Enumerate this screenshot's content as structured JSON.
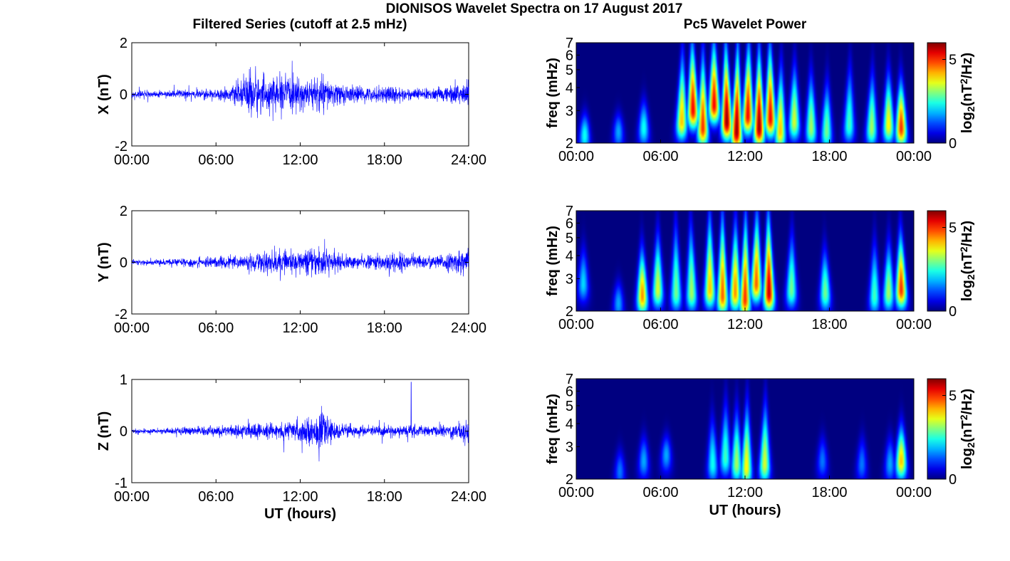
{
  "figure": {
    "title": "DIONISOS Wavelet Spectra on 17 August 2017",
    "left_title": "Filtered Series (cutoff at 2.5 mHz)",
    "right_title": "Pc5 Wavelet Power",
    "colorbar_label": "log2(nT2/Hz)"
  },
  "colors": {
    "series": "#0000ff",
    "axis": "#000000",
    "bg": "#ffffff"
  },
  "chart_data": [
    {
      "type": "line",
      "ylabel": "X (nT)",
      "xlabel": "",
      "xlim": [
        0,
        24
      ],
      "ylim": [
        -2,
        2
      ],
      "xticks": [
        "00:00",
        "06:00",
        "12:00",
        "18:00",
        "24:00"
      ],
      "yticks": [
        "-2",
        "0",
        "2"
      ],
      "amplitude_envelope": {
        "hours": [
          0,
          2,
          4,
          6,
          7,
          8,
          8.7,
          9,
          10,
          11,
          12,
          13,
          13.5,
          14,
          15,
          16,
          17,
          18,
          18.5,
          19,
          20,
          21,
          22,
          23,
          24
        ],
        "nT": [
          0.15,
          0.15,
          0.2,
          0.22,
          0.3,
          0.6,
          1.4,
          0.8,
          0.7,
          0.8,
          0.65,
          0.7,
          0.9,
          0.6,
          0.45,
          0.35,
          0.3,
          0.35,
          0.5,
          0.3,
          0.25,
          0.25,
          0.3,
          0.45,
          0.6
        ]
      },
      "annotations": []
    },
    {
      "type": "line",
      "ylabel": "Y (nT)",
      "xlabel": "",
      "xlim": [
        0,
        24
      ],
      "ylim": [
        -2,
        2
      ],
      "xticks": [
        "00:00",
        "06:00",
        "12:00",
        "18:00",
        "24:00"
      ],
      "yticks": [
        "-2",
        "0",
        "2"
      ],
      "amplitude_envelope": {
        "hours": [
          0,
          2,
          4,
          6,
          8,
          10,
          11,
          12,
          13,
          13.5,
          14,
          15,
          16,
          17,
          18,
          18.5,
          20,
          22,
          23,
          24
        ],
        "nT": [
          0.12,
          0.12,
          0.18,
          0.25,
          0.3,
          0.55,
          0.45,
          0.5,
          0.55,
          0.9,
          0.5,
          0.35,
          0.25,
          0.3,
          0.4,
          0.5,
          0.3,
          0.3,
          0.45,
          0.6
        ]
      },
      "annotations": []
    },
    {
      "type": "line",
      "ylabel": "Z (nT)",
      "xlabel": "UT (hours)",
      "xlim": [
        0,
        24
      ],
      "ylim": [
        -1,
        1
      ],
      "xticks": [
        "00:00",
        "06:00",
        "12:00",
        "18:00",
        "24:00"
      ],
      "yticks": [
        "-1",
        "0",
        "1"
      ],
      "amplitude_envelope": {
        "hours": [
          0,
          2,
          4,
          6,
          8,
          10,
          11,
          12,
          13,
          13.5,
          14,
          15,
          16,
          18,
          19,
          19.5,
          20,
          21,
          22,
          23,
          24
        ],
        "nT": [
          0.05,
          0.06,
          0.1,
          0.12,
          0.14,
          0.18,
          0.2,
          0.25,
          0.3,
          0.45,
          0.25,
          0.15,
          0.12,
          0.12,
          0.12,
          0.12,
          0.15,
          0.1,
          0.12,
          0.18,
          0.3
        ]
      },
      "spike": {
        "hour": 19.9,
        "nT": 0.95
      },
      "annotations": []
    },
    {
      "type": "heatmap",
      "xlabel": "",
      "ylabel": "freq (mHz)",
      "xlim": [
        0,
        24
      ],
      "ylim": [
        2,
        7
      ],
      "yscale": "log",
      "xticks": [
        "00:00",
        "06:00",
        "12:00",
        "18:00",
        "00:00"
      ],
      "yticks": [
        "2",
        "3",
        "4",
        "5",
        "6",
        "7"
      ],
      "colorbar": {
        "min": 0,
        "max": 6,
        "ticks": [
          "0",
          "5"
        ],
        "colormap": "jet"
      },
      "bursts": [
        [
          0.6,
          2.2,
          2.5,
          0.4
        ],
        [
          3,
          2.3,
          2.5,
          0.3
        ],
        [
          4.8,
          2.4,
          3,
          0.4
        ],
        [
          7.5,
          2.6,
          6,
          0.7
        ],
        [
          8.3,
          3,
          7,
          0.9
        ],
        [
          9,
          2.4,
          6,
          0.85
        ],
        [
          9.8,
          3.2,
          7,
          0.9
        ],
        [
          10.7,
          2.6,
          7,
          1
        ],
        [
          11.4,
          2.3,
          7,
          1
        ],
        [
          12.2,
          2.8,
          7,
          0.9
        ],
        [
          13,
          2.4,
          6.5,
          1
        ],
        [
          13.8,
          2.7,
          7,
          0.9
        ],
        [
          14.5,
          2.3,
          5,
          0.7
        ],
        [
          15.5,
          2.6,
          5,
          0.6
        ],
        [
          16.7,
          2.4,
          4.5,
          0.55
        ],
        [
          17.8,
          2.3,
          4,
          0.5
        ],
        [
          19.4,
          2.5,
          5,
          0.45
        ],
        [
          21,
          2.4,
          4.5,
          0.55
        ],
        [
          22.2,
          2.5,
          4.5,
          0.65
        ],
        [
          23.1,
          2.4,
          4,
          0.85
        ]
      ]
    },
    {
      "type": "heatmap",
      "xlabel": "",
      "ylabel": "freq (mHz)",
      "xlim": [
        0,
        24
      ],
      "ylim": [
        2,
        7
      ],
      "yscale": "log",
      "xticks": [
        "00:00",
        "06:00",
        "12:00",
        "18:00",
        "00:00"
      ],
      "yticks": [
        "2",
        "3",
        "4",
        "5",
        "6",
        "7"
      ],
      "colorbar": {
        "min": 0,
        "max": 6,
        "ticks": [
          "0",
          "5"
        ],
        "colormap": "jet"
      },
      "bursts": [
        [
          0.5,
          2.8,
          4,
          0.35
        ],
        [
          3,
          2.2,
          2.5,
          0.3
        ],
        [
          4.7,
          2.4,
          4,
          0.75
        ],
        [
          5.8,
          2.6,
          5,
          0.6
        ],
        [
          7.1,
          2.5,
          6,
          0.5
        ],
        [
          8.2,
          2.5,
          6,
          0.55
        ],
        [
          9.5,
          2.6,
          7,
          0.7
        ],
        [
          10.4,
          2.4,
          7,
          0.8
        ],
        [
          11.3,
          2.5,
          6,
          0.75
        ],
        [
          12,
          2.3,
          7,
          0.85
        ],
        [
          12.8,
          2.8,
          7,
          0.8
        ],
        [
          13.7,
          2.5,
          7,
          0.95
        ],
        [
          15.3,
          2.6,
          5,
          0.5
        ],
        [
          17.7,
          2.5,
          4,
          0.5
        ],
        [
          21.2,
          2.4,
          4.5,
          0.45
        ],
        [
          22.2,
          2.5,
          4.5,
          0.55
        ],
        [
          23.1,
          2.6,
          5,
          0.85
        ]
      ]
    },
    {
      "type": "heatmap",
      "xlabel": "UT (hours)",
      "ylabel": "freq (mHz)",
      "xlim": [
        0,
        24
      ],
      "ylim": [
        2,
        7
      ],
      "yscale": "log",
      "xticks": [
        "00:00",
        "06:00",
        "12:00",
        "18:00",
        "00:00"
      ],
      "yticks": [
        "2",
        "3",
        "4",
        "5",
        "6",
        "7"
      ],
      "colorbar": {
        "min": 0,
        "max": 6,
        "ticks": [
          "0",
          "5"
        ],
        "colormap": "jet"
      },
      "bursts": [
        [
          3.1,
          2.2,
          2.5,
          0.25
        ],
        [
          4.8,
          2.5,
          3,
          0.3
        ],
        [
          6.4,
          2.7,
          3,
          0.3
        ],
        [
          9.7,
          2.4,
          4,
          0.4
        ],
        [
          10.6,
          2.6,
          5,
          0.45
        ],
        [
          11.4,
          2.4,
          4.5,
          0.55
        ],
        [
          12.1,
          2.3,
          5,
          0.65
        ],
        [
          13.4,
          2.4,
          5,
          0.6
        ],
        [
          17.5,
          2.5,
          3,
          0.25
        ],
        [
          20.3,
          2.4,
          3,
          0.25
        ],
        [
          22.3,
          2.4,
          3,
          0.3
        ],
        [
          23.1,
          2.5,
          3.5,
          0.7
        ]
      ]
    }
  ]
}
